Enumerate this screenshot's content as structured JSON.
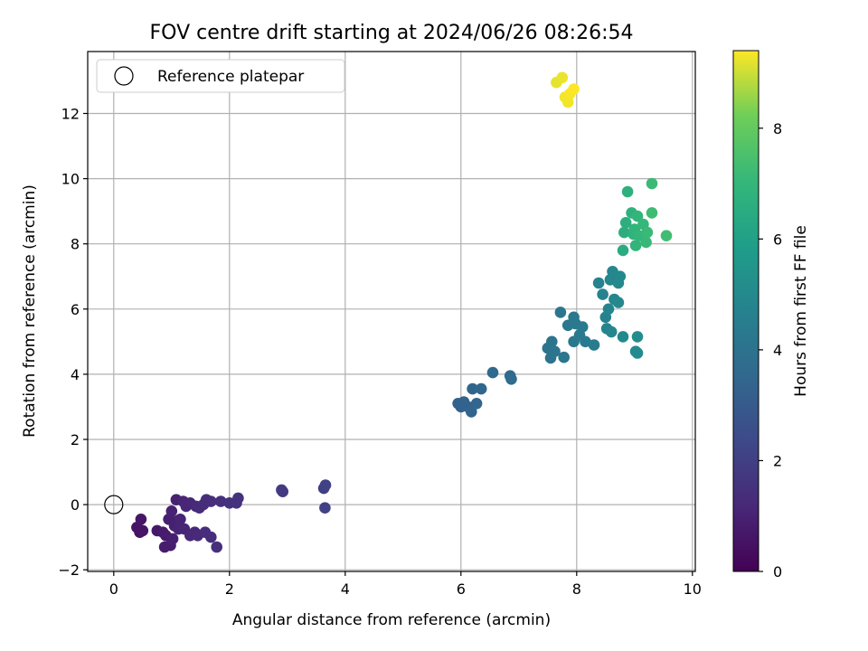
{
  "chart_data": {
    "type": "scatter",
    "title": "FOV centre drift starting at 2024/06/26 08:26:54",
    "xlabel": "Angular distance from reference (arcmin)",
    "ylabel": "Rotation from reference (arcmin)",
    "xlim": [
      -0.45,
      10.05
    ],
    "ylim": [
      -2.05,
      13.9
    ],
    "xticks": [
      0,
      2,
      4,
      6,
      8,
      10
    ],
    "yticks": [
      -2,
      0,
      2,
      4,
      6,
      8,
      10,
      12
    ],
    "grid": true,
    "legend": {
      "location": "upper-left",
      "entries": [
        "Reference platepar"
      ]
    },
    "reference_point": {
      "x": 0,
      "y": 0,
      "marker": "open-circle",
      "color": "#000000"
    },
    "colorbar": {
      "label": "Hours from first FF file",
      "range": [
        0,
        9.4
      ],
      "ticks": [
        0,
        2,
        4,
        6,
        8
      ],
      "colormap": "viridis"
    },
    "series": [
      {
        "marker": "filled-circle",
        "points": [
          {
            "x": 0.45,
            "y": -0.85,
            "h": 0.5
          },
          {
            "x": 0.4,
            "y": -0.7,
            "h": 0.55
          },
          {
            "x": 0.5,
            "y": -0.8,
            "h": 0.6
          },
          {
            "x": 0.47,
            "y": -0.45,
            "h": 0.65
          },
          {
            "x": 0.75,
            "y": -0.8,
            "h": 0.7
          },
          {
            "x": 0.85,
            "y": -0.85,
            "h": 0.75
          },
          {
            "x": 0.9,
            "y": -0.95,
            "h": 0.8
          },
          {
            "x": 0.88,
            "y": -1.3,
            "h": 0.85
          },
          {
            "x": 0.98,
            "y": -1.25,
            "h": 0.85
          },
          {
            "x": 1.02,
            "y": -1.05,
            "h": 0.9
          },
          {
            "x": 0.95,
            "y": -0.45,
            "h": 0.9
          },
          {
            "x": 1.05,
            "y": -0.65,
            "h": 0.95
          },
          {
            "x": 1.1,
            "y": -0.5,
            "h": 0.95
          },
          {
            "x": 1.0,
            "y": -0.2,
            "h": 1.0
          },
          {
            "x": 1.08,
            "y": 0.15,
            "h": 1.0
          },
          {
            "x": 1.15,
            "y": -0.45,
            "h": 1.05
          },
          {
            "x": 1.12,
            "y": -0.75,
            "h": 1.05
          },
          {
            "x": 1.22,
            "y": -0.75,
            "h": 1.1
          },
          {
            "x": 1.2,
            "y": 0.1,
            "h": 1.1
          },
          {
            "x": 1.25,
            "y": -0.05,
            "h": 1.15
          },
          {
            "x": 1.32,
            "y": 0.05,
            "h": 1.15
          },
          {
            "x": 1.32,
            "y": -0.95,
            "h": 1.2
          },
          {
            "x": 1.4,
            "y": -0.85,
            "h": 1.2
          },
          {
            "x": 1.45,
            "y": -0.95,
            "h": 1.25
          },
          {
            "x": 1.42,
            "y": -0.05,
            "h": 1.25
          },
          {
            "x": 1.48,
            "y": -0.1,
            "h": 1.3
          },
          {
            "x": 1.55,
            "y": 0.0,
            "h": 1.3
          },
          {
            "x": 1.6,
            "y": 0.15,
            "h": 1.35
          },
          {
            "x": 1.58,
            "y": -0.85,
            "h": 1.35
          },
          {
            "x": 1.68,
            "y": 0.1,
            "h": 1.4
          },
          {
            "x": 1.68,
            "y": -1.0,
            "h": 1.4
          },
          {
            "x": 1.78,
            "y": -1.3,
            "h": 1.45
          },
          {
            "x": 1.85,
            "y": 0.1,
            "h": 1.45
          },
          {
            "x": 2.0,
            "y": 0.05,
            "h": 1.5
          },
          {
            "x": 2.12,
            "y": 0.05,
            "h": 1.55
          },
          {
            "x": 2.15,
            "y": 0.2,
            "h": 1.55
          },
          {
            "x": 2.9,
            "y": 0.45,
            "h": 1.8
          },
          {
            "x": 2.92,
            "y": 0.4,
            "h": 1.8
          },
          {
            "x": 3.63,
            "y": 0.5,
            "h": 2.0
          },
          {
            "x": 3.66,
            "y": 0.6,
            "h": 2.05
          },
          {
            "x": 3.65,
            "y": -0.1,
            "h": 2.1
          },
          {
            "x": 5.95,
            "y": 3.1,
            "h": 3.3
          },
          {
            "x": 6.0,
            "y": 3.0,
            "h": 3.3
          },
          {
            "x": 6.05,
            "y": 3.15,
            "h": 3.35
          },
          {
            "x": 6.12,
            "y": 3.0,
            "h": 3.35
          },
          {
            "x": 6.18,
            "y": 2.85,
            "h": 3.4
          },
          {
            "x": 6.2,
            "y": 3.55,
            "h": 3.4
          },
          {
            "x": 6.27,
            "y": 3.1,
            "h": 3.45
          },
          {
            "x": 6.35,
            "y": 3.55,
            "h": 3.5
          },
          {
            "x": 6.55,
            "y": 4.05,
            "h": 3.6
          },
          {
            "x": 6.85,
            "y": 3.95,
            "h": 3.7
          },
          {
            "x": 6.87,
            "y": 3.85,
            "h": 3.7
          },
          {
            "x": 7.5,
            "y": 4.8,
            "h": 4.0
          },
          {
            "x": 7.55,
            "y": 4.5,
            "h": 4.05
          },
          {
            "x": 7.57,
            "y": 5.0,
            "h": 4.05
          },
          {
            "x": 7.62,
            "y": 4.7,
            "h": 4.1
          },
          {
            "x": 7.72,
            "y": 5.9,
            "h": 4.15
          },
          {
            "x": 7.78,
            "y": 4.52,
            "h": 4.15
          },
          {
            "x": 7.85,
            "y": 5.5,
            "h": 4.2
          },
          {
            "x": 7.95,
            "y": 5.75,
            "h": 4.25
          },
          {
            "x": 7.95,
            "y": 5.0,
            "h": 4.25
          },
          {
            "x": 7.98,
            "y": 5.55,
            "h": 4.3
          },
          {
            "x": 8.05,
            "y": 5.2,
            "h": 4.3
          },
          {
            "x": 8.1,
            "y": 5.45,
            "h": 4.35
          },
          {
            "x": 8.15,
            "y": 5.0,
            "h": 4.35
          },
          {
            "x": 8.3,
            "y": 4.9,
            "h": 4.4
          },
          {
            "x": 8.38,
            "y": 6.8,
            "h": 4.7
          },
          {
            "x": 8.45,
            "y": 6.45,
            "h": 4.75
          },
          {
            "x": 8.5,
            "y": 5.75,
            "h": 4.75
          },
          {
            "x": 8.52,
            "y": 5.4,
            "h": 4.8
          },
          {
            "x": 8.55,
            "y": 6.0,
            "h": 4.8
          },
          {
            "x": 8.58,
            "y": 6.9,
            "h": 4.85
          },
          {
            "x": 8.6,
            "y": 5.3,
            "h": 4.85
          },
          {
            "x": 8.62,
            "y": 7.15,
            "h": 4.9
          },
          {
            "x": 8.65,
            "y": 6.3,
            "h": 4.9
          },
          {
            "x": 8.72,
            "y": 6.8,
            "h": 4.95
          },
          {
            "x": 8.72,
            "y": 6.2,
            "h": 4.95
          },
          {
            "x": 8.75,
            "y": 7.0,
            "h": 5.0
          },
          {
            "x": 8.8,
            "y": 5.15,
            "h": 5.0
          },
          {
            "x": 9.02,
            "y": 4.7,
            "h": 5.05
          },
          {
            "x": 9.05,
            "y": 4.65,
            "h": 5.05
          },
          {
            "x": 9.05,
            "y": 5.15,
            "h": 5.1
          },
          {
            "x": 8.8,
            "y": 7.8,
            "h": 6.5
          },
          {
            "x": 8.82,
            "y": 8.35,
            "h": 6.6
          },
          {
            "x": 8.85,
            "y": 8.65,
            "h": 6.65
          },
          {
            "x": 8.88,
            "y": 9.6,
            "h": 6.7
          },
          {
            "x": 8.95,
            "y": 8.95,
            "h": 6.75
          },
          {
            "x": 8.98,
            "y": 8.3,
            "h": 6.8
          },
          {
            "x": 9.0,
            "y": 8.45,
            "h": 6.85
          },
          {
            "x": 9.02,
            "y": 7.95,
            "h": 6.9
          },
          {
            "x": 9.05,
            "y": 8.85,
            "h": 6.95
          },
          {
            "x": 9.08,
            "y": 8.25,
            "h": 7.0
          },
          {
            "x": 9.15,
            "y": 8.6,
            "h": 7.05
          },
          {
            "x": 9.2,
            "y": 8.05,
            "h": 7.1
          },
          {
            "x": 9.22,
            "y": 8.35,
            "h": 7.15
          },
          {
            "x": 9.3,
            "y": 9.85,
            "h": 7.2
          },
          {
            "x": 9.3,
            "y": 8.95,
            "h": 7.25
          },
          {
            "x": 9.55,
            "y": 8.25,
            "h": 7.3
          },
          {
            "x": 7.65,
            "y": 12.95,
            "h": 9.2
          },
          {
            "x": 7.75,
            "y": 13.1,
            "h": 9.25
          },
          {
            "x": 7.8,
            "y": 12.5,
            "h": 9.3
          },
          {
            "x": 7.85,
            "y": 12.35,
            "h": 9.3
          },
          {
            "x": 7.88,
            "y": 12.6,
            "h": 9.35
          },
          {
            "x": 7.95,
            "y": 12.75,
            "h": 9.4
          }
        ]
      }
    ]
  }
}
